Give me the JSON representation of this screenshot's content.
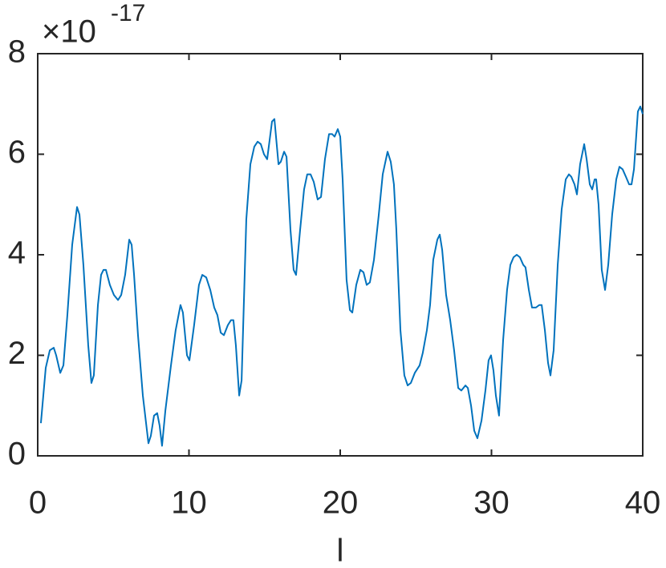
{
  "chart_data": {
    "type": "line",
    "xlabel": "l",
    "y_exponent_base": "×10",
    "y_exponent": "-17",
    "xlim": [
      0,
      40
    ],
    "xticks": [
      0,
      10,
      20,
      30,
      40
    ],
    "ylim": [
      0,
      8
    ],
    "yticks": [
      0,
      2,
      4,
      6,
      8
    ],
    "grid": false,
    "series": [
      {
        "color": "#0072bd",
        "x": [
          0.21,
          0.53,
          0.8,
          1.06,
          1.22,
          1.49,
          1.7,
          1.96,
          2.28,
          2.6,
          2.76,
          3.02,
          3.34,
          3.55,
          3.71,
          3.98,
          4.19,
          4.35,
          4.51,
          4.77,
          5.04,
          5.31,
          5.52,
          5.78,
          6.05,
          6.21,
          6.37,
          6.63,
          6.95,
          7.32,
          7.48,
          7.69,
          7.9,
          8.06,
          8.22,
          8.44,
          8.81,
          9.12,
          9.44,
          9.6,
          9.87,
          10.03,
          10.34,
          10.66,
          10.88,
          11.14,
          11.41,
          11.67,
          11.88,
          12.1,
          12.31,
          12.57,
          12.78,
          12.94,
          13.1,
          13.32,
          13.48,
          13.79,
          14.06,
          14.32,
          14.54,
          14.75,
          14.96,
          15.17,
          15.49,
          15.65,
          15.92,
          16.07,
          16.29,
          16.45,
          16.71,
          16.92,
          17.08,
          17.35,
          17.61,
          17.82,
          18.04,
          18.25,
          18.51,
          18.73,
          18.99,
          19.26,
          19.47,
          19.63,
          19.84,
          20.0,
          20.16,
          20.42,
          20.64,
          20.8,
          21.06,
          21.33,
          21.54,
          21.75,
          21.96,
          22.23,
          22.55,
          22.81,
          23.13,
          23.34,
          23.55,
          23.71,
          23.98,
          24.24,
          24.46,
          24.67,
          24.93,
          25.25,
          25.46,
          25.73,
          25.94,
          26.15,
          26.42,
          26.58,
          26.74,
          27.0,
          27.27,
          27.53,
          27.8,
          28.01,
          28.28,
          28.44,
          28.65,
          28.86,
          29.07,
          29.34,
          29.6,
          29.81,
          29.97,
          30.13,
          30.29,
          30.5,
          30.77,
          31.03,
          31.25,
          31.46,
          31.67,
          31.88,
          32.1,
          32.25,
          32.47,
          32.68,
          32.94,
          33.16,
          33.32,
          33.53,
          33.74,
          33.9,
          34.11,
          34.38,
          34.64,
          34.91,
          35.12,
          35.28,
          35.49,
          35.65,
          35.86,
          36.13,
          36.29,
          36.5,
          36.66,
          36.82,
          36.92,
          37.08,
          37.29,
          37.51,
          37.72,
          37.98,
          38.25,
          38.46,
          38.67,
          38.89,
          39.1,
          39.26,
          39.42,
          39.68,
          39.84,
          40.0
        ],
        "values": [
          0.65,
          1.75,
          2.1,
          2.15,
          2.0,
          1.65,
          1.8,
          2.8,
          4.2,
          4.95,
          4.8,
          3.8,
          2.2,
          1.45,
          1.6,
          3.0,
          3.6,
          3.7,
          3.7,
          3.4,
          3.2,
          3.1,
          3.2,
          3.6,
          4.3,
          4.2,
          3.6,
          2.4,
          1.2,
          0.25,
          0.4,
          0.8,
          0.85,
          0.6,
          0.2,
          0.9,
          1.8,
          2.5,
          3.0,
          2.85,
          2.0,
          1.9,
          2.6,
          3.4,
          3.6,
          3.55,
          3.3,
          2.95,
          2.8,
          2.45,
          2.4,
          2.6,
          2.7,
          2.7,
          2.2,
          1.2,
          1.5,
          4.7,
          5.8,
          6.15,
          6.25,
          6.2,
          6.0,
          5.9,
          6.65,
          6.7,
          5.8,
          5.85,
          6.05,
          5.95,
          4.5,
          3.7,
          3.6,
          4.5,
          5.3,
          5.6,
          5.6,
          5.45,
          5.1,
          5.15,
          5.9,
          6.4,
          6.4,
          6.35,
          6.5,
          6.35,
          5.5,
          3.5,
          2.9,
          2.85,
          3.4,
          3.7,
          3.65,
          3.4,
          3.45,
          3.9,
          4.8,
          5.6,
          6.05,
          5.85,
          5.4,
          4.5,
          2.5,
          1.6,
          1.4,
          1.45,
          1.65,
          1.8,
          2.05,
          2.5,
          3.0,
          3.9,
          4.3,
          4.4,
          4.1,
          3.2,
          2.7,
          2.1,
          1.35,
          1.3,
          1.4,
          1.35,
          1.0,
          0.5,
          0.35,
          0.7,
          1.3,
          1.9,
          2.0,
          1.7,
          1.2,
          0.8,
          2.3,
          3.3,
          3.8,
          3.95,
          4.0,
          3.95,
          3.8,
          3.75,
          3.3,
          2.95,
          2.95,
          3.0,
          3.0,
          2.5,
          1.85,
          1.6,
          2.1,
          3.8,
          4.9,
          5.5,
          5.6,
          5.55,
          5.4,
          5.2,
          5.8,
          6.2,
          5.9,
          5.4,
          5.3,
          5.5,
          5.5,
          5.0,
          3.7,
          3.3,
          3.8,
          4.8,
          5.5,
          5.75,
          5.7,
          5.55,
          5.4,
          5.4,
          5.7,
          6.85,
          6.95,
          6.8
        ]
      }
    ]
  }
}
